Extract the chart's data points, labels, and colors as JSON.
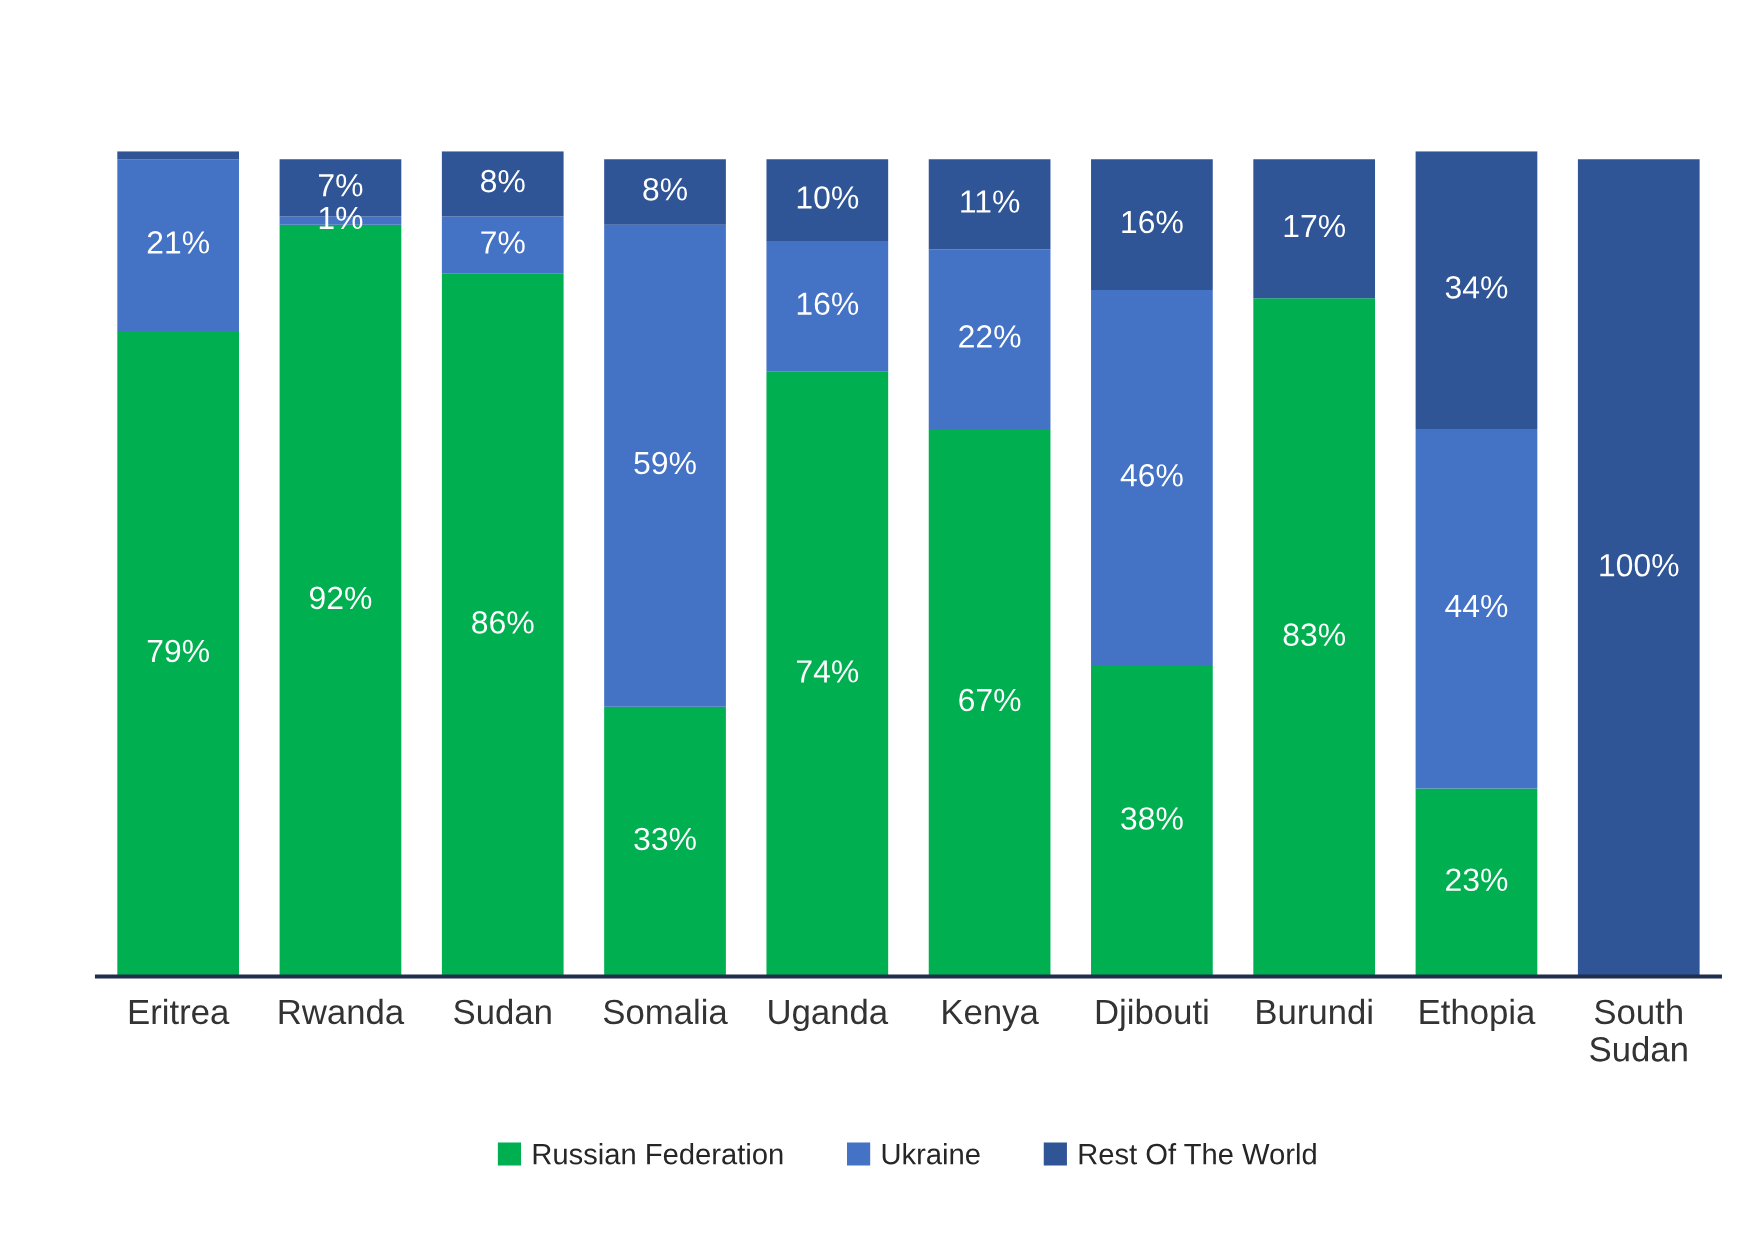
{
  "chart_data": {
    "type": "bar",
    "stacked": true,
    "categories": [
      "Eritrea",
      "Rwanda",
      "Sudan",
      "Somalia",
      "Uganda",
      "Kenya",
      "Djibouti",
      "Burundi",
      "Ethopia",
      "South\nSudan"
    ],
    "series": [
      {
        "name": "Russian Federation",
        "color": "#00b050",
        "values": [
          79,
          92,
          86,
          33,
          74,
          67,
          38,
          83,
          23,
          0
        ],
        "value_labels": [
          "79%",
          "92%",
          "86%",
          "33%",
          "74%",
          "67%",
          "38%",
          "83%",
          "23%",
          null
        ]
      },
      {
        "name": "Ukraine",
        "color": "#4472c4",
        "values": [
          21,
          1,
          7,
          59,
          16,
          22,
          46,
          0,
          44,
          0
        ],
        "value_labels": [
          "21%",
          "1%",
          "7%",
          "59%",
          "16%",
          "22%",
          "46%",
          null,
          "44%",
          null
        ]
      },
      {
        "name": "Rest Of The World",
        "color": "#2f5597",
        "values": [
          1,
          7,
          8,
          8,
          10,
          11,
          16,
          17,
          34,
          100
        ],
        "value_labels": [
          null,
          "7%",
          "8%",
          "8%",
          "10%",
          "11%",
          "16%",
          "17%",
          "34%",
          "100%"
        ]
      }
    ],
    "legend": "bottom"
  }
}
